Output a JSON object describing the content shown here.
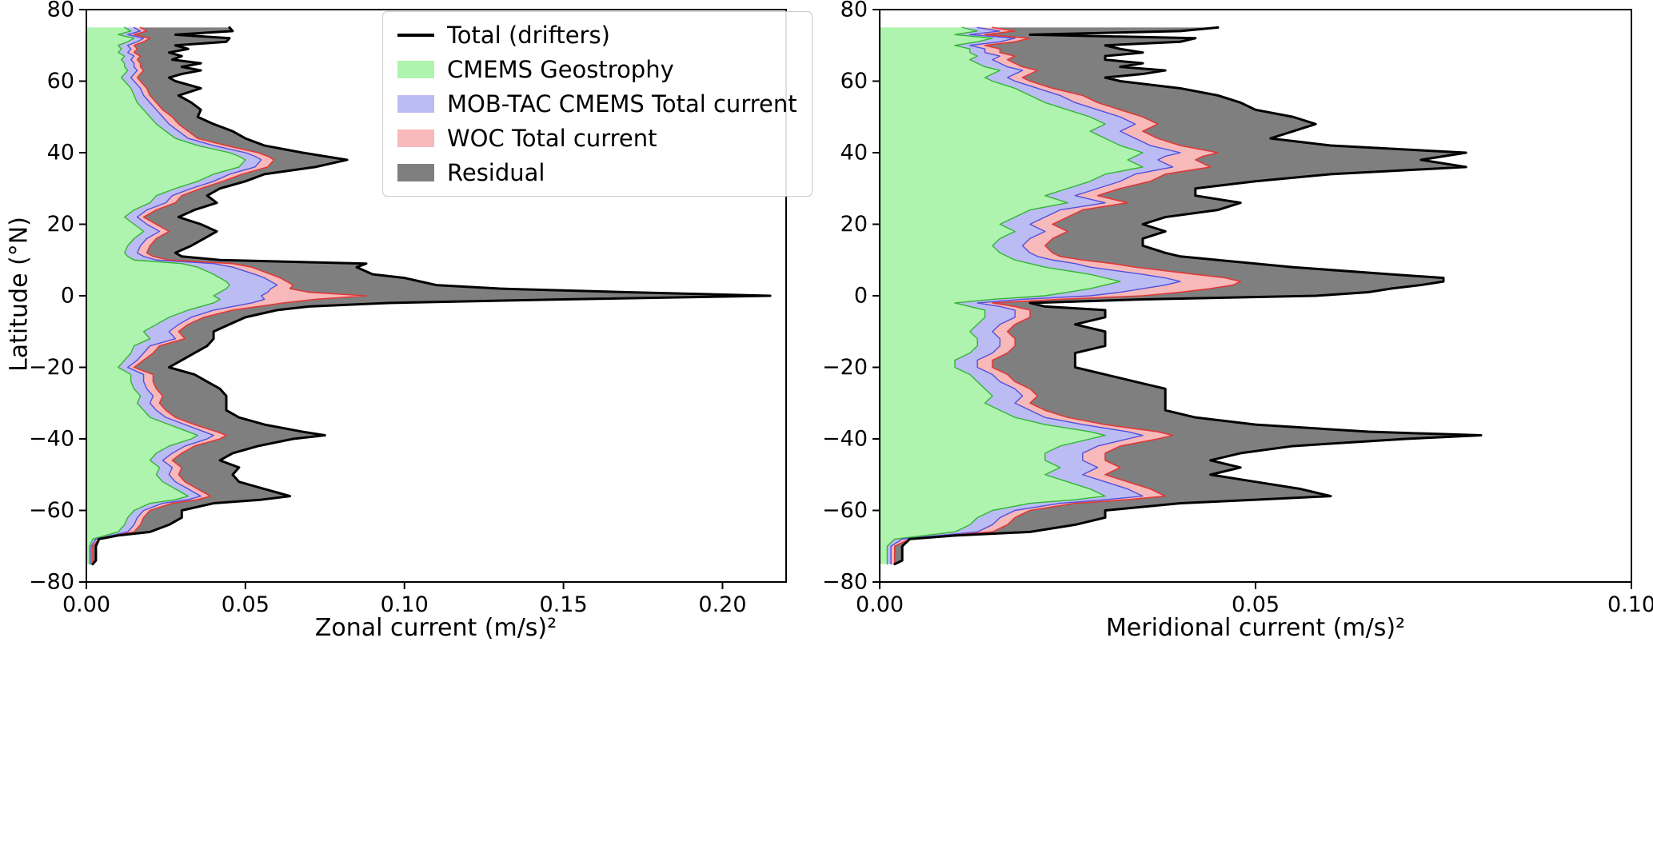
{
  "figure": {
    "background": "#ffffff"
  },
  "chart_data": {
    "type": "area",
    "orientation": "horizontal",
    "grid": false,
    "ylabel": "Latitude (°N)",
    "ylim": [
      -80,
      80
    ],
    "yticks": [
      80,
      60,
      40,
      20,
      0,
      -20,
      -40,
      -60,
      -80
    ],
    "ytick_labels": [
      "80",
      "60",
      "40",
      "20",
      "0",
      "−20",
      "−40",
      "−60",
      "−80"
    ],
    "legend_position": "upper center of left panel",
    "legend": [
      {
        "label": "Total (drifters)",
        "type": "line",
        "color": "#000000"
      },
      {
        "label": "CMEMS Geostrophy",
        "type": "patch",
        "color": "#aef4ae"
      },
      {
        "label": "MOB-TAC CMEMS Total current",
        "type": "patch",
        "color": "#bcbcf5"
      },
      {
        "label": "WOC Total current",
        "type": "patch",
        "color": "#f7b9b9"
      },
      {
        "label": "Residual",
        "type": "patch",
        "color": "#7f7f7f"
      }
    ],
    "edge_colors": {
      "cmems_geostrophy": "#33b533",
      "mobtac_cmems_total": "#5050dd",
      "woc_total": "#e03838",
      "total_drifters": "#000000"
    },
    "lat": [
      -75,
      -74,
      -72,
      -70,
      -68,
      -67,
      -66,
      -64,
      -62,
      -60,
      -58,
      -57,
      -56,
      -55,
      -54,
      -52,
      -50,
      -48,
      -46,
      -44,
      -42,
      -40,
      -39,
      -38,
      -36,
      -34,
      -32,
      -30,
      -28,
      -26,
      -24,
      -22,
      -20,
      -18,
      -16,
      -14,
      -12,
      -10,
      -8,
      -6,
      -4,
      -3,
      -2,
      -1,
      0,
      1,
      2,
      3,
      4,
      5,
      6,
      8,
      9,
      10,
      11,
      12,
      14,
      16,
      18,
      20,
      22,
      24,
      26,
      28,
      30,
      32,
      34,
      36,
      38,
      39,
      40,
      42,
      44,
      46,
      48,
      50,
      52,
      54,
      56,
      58,
      60,
      61,
      62,
      63,
      64,
      65,
      66,
      67,
      68,
      69,
      70,
      71,
      72,
      73,
      74,
      75
    ],
    "panels": [
      {
        "name": "zonal",
        "xlabel": "Zonal current (m/s)²",
        "xlim": [
          0,
          0.22
        ],
        "xticks": [
          0,
          0.05,
          0.1,
          0.15,
          0.2
        ],
        "xtick_labels": [
          "0.00",
          "0.05",
          "0.10",
          "0.15",
          "0.20"
        ],
        "series": {
          "cmems_geostrophy": [
            0.001,
            0.001,
            0.001,
            0.001,
            0.002,
            0.006,
            0.01,
            0.012,
            0.013,
            0.015,
            0.02,
            0.028,
            0.032,
            0.03,
            0.028,
            0.024,
            0.022,
            0.023,
            0.02,
            0.022,
            0.026,
            0.033,
            0.035,
            0.032,
            0.026,
            0.02,
            0.018,
            0.016,
            0.017,
            0.015,
            0.014,
            0.014,
            0.01,
            0.012,
            0.014,
            0.015,
            0.02,
            0.018,
            0.022,
            0.026,
            0.032,
            0.036,
            0.04,
            0.042,
            0.04,
            0.042,
            0.044,
            0.045,
            0.044,
            0.042,
            0.04,
            0.035,
            0.03,
            0.015,
            0.013,
            0.012,
            0.013,
            0.015,
            0.018,
            0.015,
            0.012,
            0.015,
            0.02,
            0.022,
            0.028,
            0.035,
            0.04,
            0.048,
            0.05,
            0.048,
            0.045,
            0.035,
            0.028,
            0.025,
            0.022,
            0.02,
            0.018,
            0.016,
            0.015,
            0.014,
            0.012,
            0.011,
            0.012,
            0.013,
            0.012,
            0.012,
            0.011,
            0.012,
            0.01,
            0.011,
            0.01,
            0.013,
            0.015,
            0.01,
            0.014,
            0.012
          ],
          "mobtac_cmems_total": [
            0.0015,
            0.0015,
            0.0015,
            0.0015,
            0.003,
            0.008,
            0.013,
            0.015,
            0.016,
            0.018,
            0.024,
            0.032,
            0.036,
            0.034,
            0.032,
            0.028,
            0.026,
            0.027,
            0.024,
            0.027,
            0.031,
            0.038,
            0.04,
            0.037,
            0.031,
            0.025,
            0.022,
            0.02,
            0.021,
            0.019,
            0.018,
            0.018,
            0.013,
            0.016,
            0.018,
            0.02,
            0.028,
            0.026,
            0.029,
            0.033,
            0.04,
            0.046,
            0.052,
            0.056,
            0.055,
            0.057,
            0.058,
            0.06,
            0.058,
            0.056,
            0.053,
            0.046,
            0.04,
            0.022,
            0.018,
            0.016,
            0.017,
            0.019,
            0.023,
            0.019,
            0.016,
            0.019,
            0.025,
            0.027,
            0.033,
            0.04,
            0.045,
            0.053,
            0.055,
            0.053,
            0.05,
            0.04,
            0.032,
            0.029,
            0.026,
            0.024,
            0.022,
            0.02,
            0.018,
            0.017,
            0.015,
            0.014,
            0.015,
            0.016,
            0.015,
            0.015,
            0.014,
            0.015,
            0.013,
            0.014,
            0.013,
            0.016,
            0.018,
            0.013,
            0.017,
            0.015
          ],
          "woc_total": [
            0.002,
            0.002,
            0.002,
            0.002,
            0.004,
            0.009,
            0.015,
            0.017,
            0.018,
            0.02,
            0.027,
            0.035,
            0.039,
            0.037,
            0.035,
            0.031,
            0.029,
            0.03,
            0.027,
            0.03,
            0.034,
            0.042,
            0.044,
            0.041,
            0.034,
            0.028,
            0.025,
            0.023,
            0.024,
            0.022,
            0.021,
            0.021,
            0.015,
            0.018,
            0.021,
            0.023,
            0.031,
            0.029,
            0.032,
            0.037,
            0.046,
            0.054,
            0.062,
            0.072,
            0.088,
            0.07,
            0.064,
            0.065,
            0.063,
            0.061,
            0.058,
            0.052,
            0.046,
            0.026,
            0.021,
            0.019,
            0.02,
            0.022,
            0.026,
            0.022,
            0.018,
            0.022,
            0.028,
            0.03,
            0.036,
            0.043,
            0.049,
            0.057,
            0.059,
            0.057,
            0.054,
            0.044,
            0.035,
            0.032,
            0.029,
            0.027,
            0.024,
            0.022,
            0.02,
            0.019,
            0.017,
            0.016,
            0.017,
            0.018,
            0.017,
            0.017,
            0.016,
            0.017,
            0.015,
            0.016,
            0.015,
            0.018,
            0.02,
            0.015,
            0.019,
            0.017
          ],
          "total_drifters": [
            0.002,
            0.003,
            0.003,
            0.003,
            0.004,
            0.01,
            0.02,
            0.026,
            0.03,
            0.03,
            0.04,
            0.055,
            0.064,
            0.06,
            0.056,
            0.048,
            0.046,
            0.048,
            0.042,
            0.046,
            0.054,
            0.065,
            0.075,
            0.068,
            0.056,
            0.048,
            0.044,
            0.044,
            0.044,
            0.042,
            0.038,
            0.034,
            0.026,
            0.03,
            0.034,
            0.038,
            0.04,
            0.04,
            0.045,
            0.05,
            0.06,
            0.07,
            0.095,
            0.15,
            0.215,
            0.17,
            0.13,
            0.11,
            0.105,
            0.1,
            0.09,
            0.085,
            0.088,
            0.042,
            0.03,
            0.028,
            0.033,
            0.037,
            0.041,
            0.036,
            0.029,
            0.034,
            0.041,
            0.038,
            0.042,
            0.05,
            0.056,
            0.072,
            0.082,
            0.075,
            0.068,
            0.056,
            0.05,
            0.046,
            0.04,
            0.035,
            0.036,
            0.033,
            0.029,
            0.036,
            0.028,
            0.026,
            0.03,
            0.036,
            0.03,
            0.036,
            0.027,
            0.03,
            0.026,
            0.032,
            0.028,
            0.044,
            0.045,
            0.028,
            0.046,
            0.045
          ]
        }
      },
      {
        "name": "meridional",
        "xlabel": "Meridional current (m/s)²",
        "xlim": [
          0,
          0.1
        ],
        "xticks": [
          0,
          0.05,
          0.1
        ],
        "xtick_labels": [
          "0.00",
          "0.05",
          "0.10"
        ],
        "series": {
          "cmems_geostrophy": [
            0.001,
            0.001,
            0.001,
            0.001,
            0.002,
            0.006,
            0.01,
            0.012,
            0.013,
            0.015,
            0.02,
            0.026,
            0.03,
            0.029,
            0.028,
            0.025,
            0.022,
            0.024,
            0.022,
            0.022,
            0.024,
            0.028,
            0.03,
            0.028,
            0.022,
            0.018,
            0.016,
            0.014,
            0.015,
            0.014,
            0.013,
            0.012,
            0.01,
            0.01,
            0.012,
            0.013,
            0.013,
            0.012,
            0.013,
            0.014,
            0.014,
            0.012,
            0.01,
            0.015,
            0.022,
            0.025,
            0.028,
            0.03,
            0.032,
            0.03,
            0.028,
            0.022,
            0.02,
            0.018,
            0.017,
            0.016,
            0.015,
            0.016,
            0.018,
            0.016,
            0.018,
            0.02,
            0.025,
            0.022,
            0.025,
            0.028,
            0.03,
            0.035,
            0.033,
            0.034,
            0.035,
            0.032,
            0.03,
            0.028,
            0.03,
            0.028,
            0.025,
            0.022,
            0.02,
            0.018,
            0.015,
            0.014,
            0.015,
            0.016,
            0.014,
            0.013,
            0.012,
            0.013,
            0.012,
            0.012,
            0.01,
            0.013,
            0.015,
            0.01,
            0.013,
            0.011
          ],
          "mobtac_cmems_total": [
            0.0015,
            0.0015,
            0.0015,
            0.0015,
            0.003,
            0.008,
            0.013,
            0.015,
            0.016,
            0.018,
            0.024,
            0.03,
            0.035,
            0.034,
            0.033,
            0.03,
            0.027,
            0.029,
            0.027,
            0.027,
            0.029,
            0.033,
            0.035,
            0.033,
            0.027,
            0.022,
            0.02,
            0.018,
            0.019,
            0.018,
            0.016,
            0.015,
            0.013,
            0.013,
            0.015,
            0.016,
            0.016,
            0.015,
            0.016,
            0.018,
            0.018,
            0.016,
            0.013,
            0.019,
            0.028,
            0.032,
            0.035,
            0.038,
            0.04,
            0.038,
            0.035,
            0.028,
            0.026,
            0.023,
            0.021,
            0.02,
            0.019,
            0.02,
            0.022,
            0.02,
            0.022,
            0.024,
            0.03,
            0.026,
            0.029,
            0.032,
            0.034,
            0.039,
            0.037,
            0.038,
            0.04,
            0.036,
            0.034,
            0.032,
            0.034,
            0.032,
            0.029,
            0.026,
            0.024,
            0.021,
            0.018,
            0.017,
            0.018,
            0.019,
            0.017,
            0.016,
            0.015,
            0.016,
            0.014,
            0.014,
            0.012,
            0.016,
            0.018,
            0.012,
            0.016,
            0.013
          ],
          "woc_total": [
            0.002,
            0.002,
            0.002,
            0.002,
            0.004,
            0.009,
            0.015,
            0.017,
            0.018,
            0.02,
            0.026,
            0.033,
            0.038,
            0.037,
            0.036,
            0.033,
            0.03,
            0.032,
            0.03,
            0.03,
            0.032,
            0.037,
            0.039,
            0.037,
            0.03,
            0.025,
            0.022,
            0.02,
            0.021,
            0.02,
            0.018,
            0.017,
            0.015,
            0.015,
            0.017,
            0.018,
            0.018,
            0.017,
            0.018,
            0.02,
            0.02,
            0.018,
            0.015,
            0.024,
            0.035,
            0.04,
            0.044,
            0.047,
            0.048,
            0.046,
            0.042,
            0.034,
            0.031,
            0.027,
            0.024,
            0.023,
            0.022,
            0.023,
            0.025,
            0.023,
            0.025,
            0.027,
            0.033,
            0.029,
            0.032,
            0.036,
            0.038,
            0.044,
            0.042,
            0.043,
            0.045,
            0.04,
            0.037,
            0.035,
            0.037,
            0.035,
            0.032,
            0.029,
            0.027,
            0.023,
            0.02,
            0.019,
            0.02,
            0.021,
            0.019,
            0.018,
            0.017,
            0.018,
            0.016,
            0.016,
            0.014,
            0.018,
            0.02,
            0.014,
            0.018,
            0.015
          ],
          "total_drifters": [
            0.002,
            0.003,
            0.003,
            0.003,
            0.004,
            0.01,
            0.02,
            0.026,
            0.03,
            0.03,
            0.04,
            0.05,
            0.06,
            0.058,
            0.056,
            0.05,
            0.044,
            0.048,
            0.044,
            0.048,
            0.055,
            0.07,
            0.08,
            0.065,
            0.05,
            0.042,
            0.038,
            0.038,
            0.038,
            0.038,
            0.034,
            0.03,
            0.026,
            0.026,
            0.026,
            0.03,
            0.03,
            0.03,
            0.026,
            0.03,
            0.03,
            0.022,
            0.02,
            0.035,
            0.058,
            0.065,
            0.068,
            0.072,
            0.075,
            0.075,
            0.068,
            0.055,
            0.05,
            0.045,
            0.04,
            0.038,
            0.035,
            0.035,
            0.038,
            0.035,
            0.038,
            0.045,
            0.048,
            0.042,
            0.042,
            0.05,
            0.06,
            0.078,
            0.072,
            0.075,
            0.078,
            0.06,
            0.052,
            0.055,
            0.058,
            0.055,
            0.05,
            0.048,
            0.045,
            0.04,
            0.032,
            0.03,
            0.035,
            0.038,
            0.032,
            0.035,
            0.03,
            0.03,
            0.035,
            0.032,
            0.03,
            0.04,
            0.042,
            0.02,
            0.04,
            0.045
          ]
        }
      }
    ]
  }
}
